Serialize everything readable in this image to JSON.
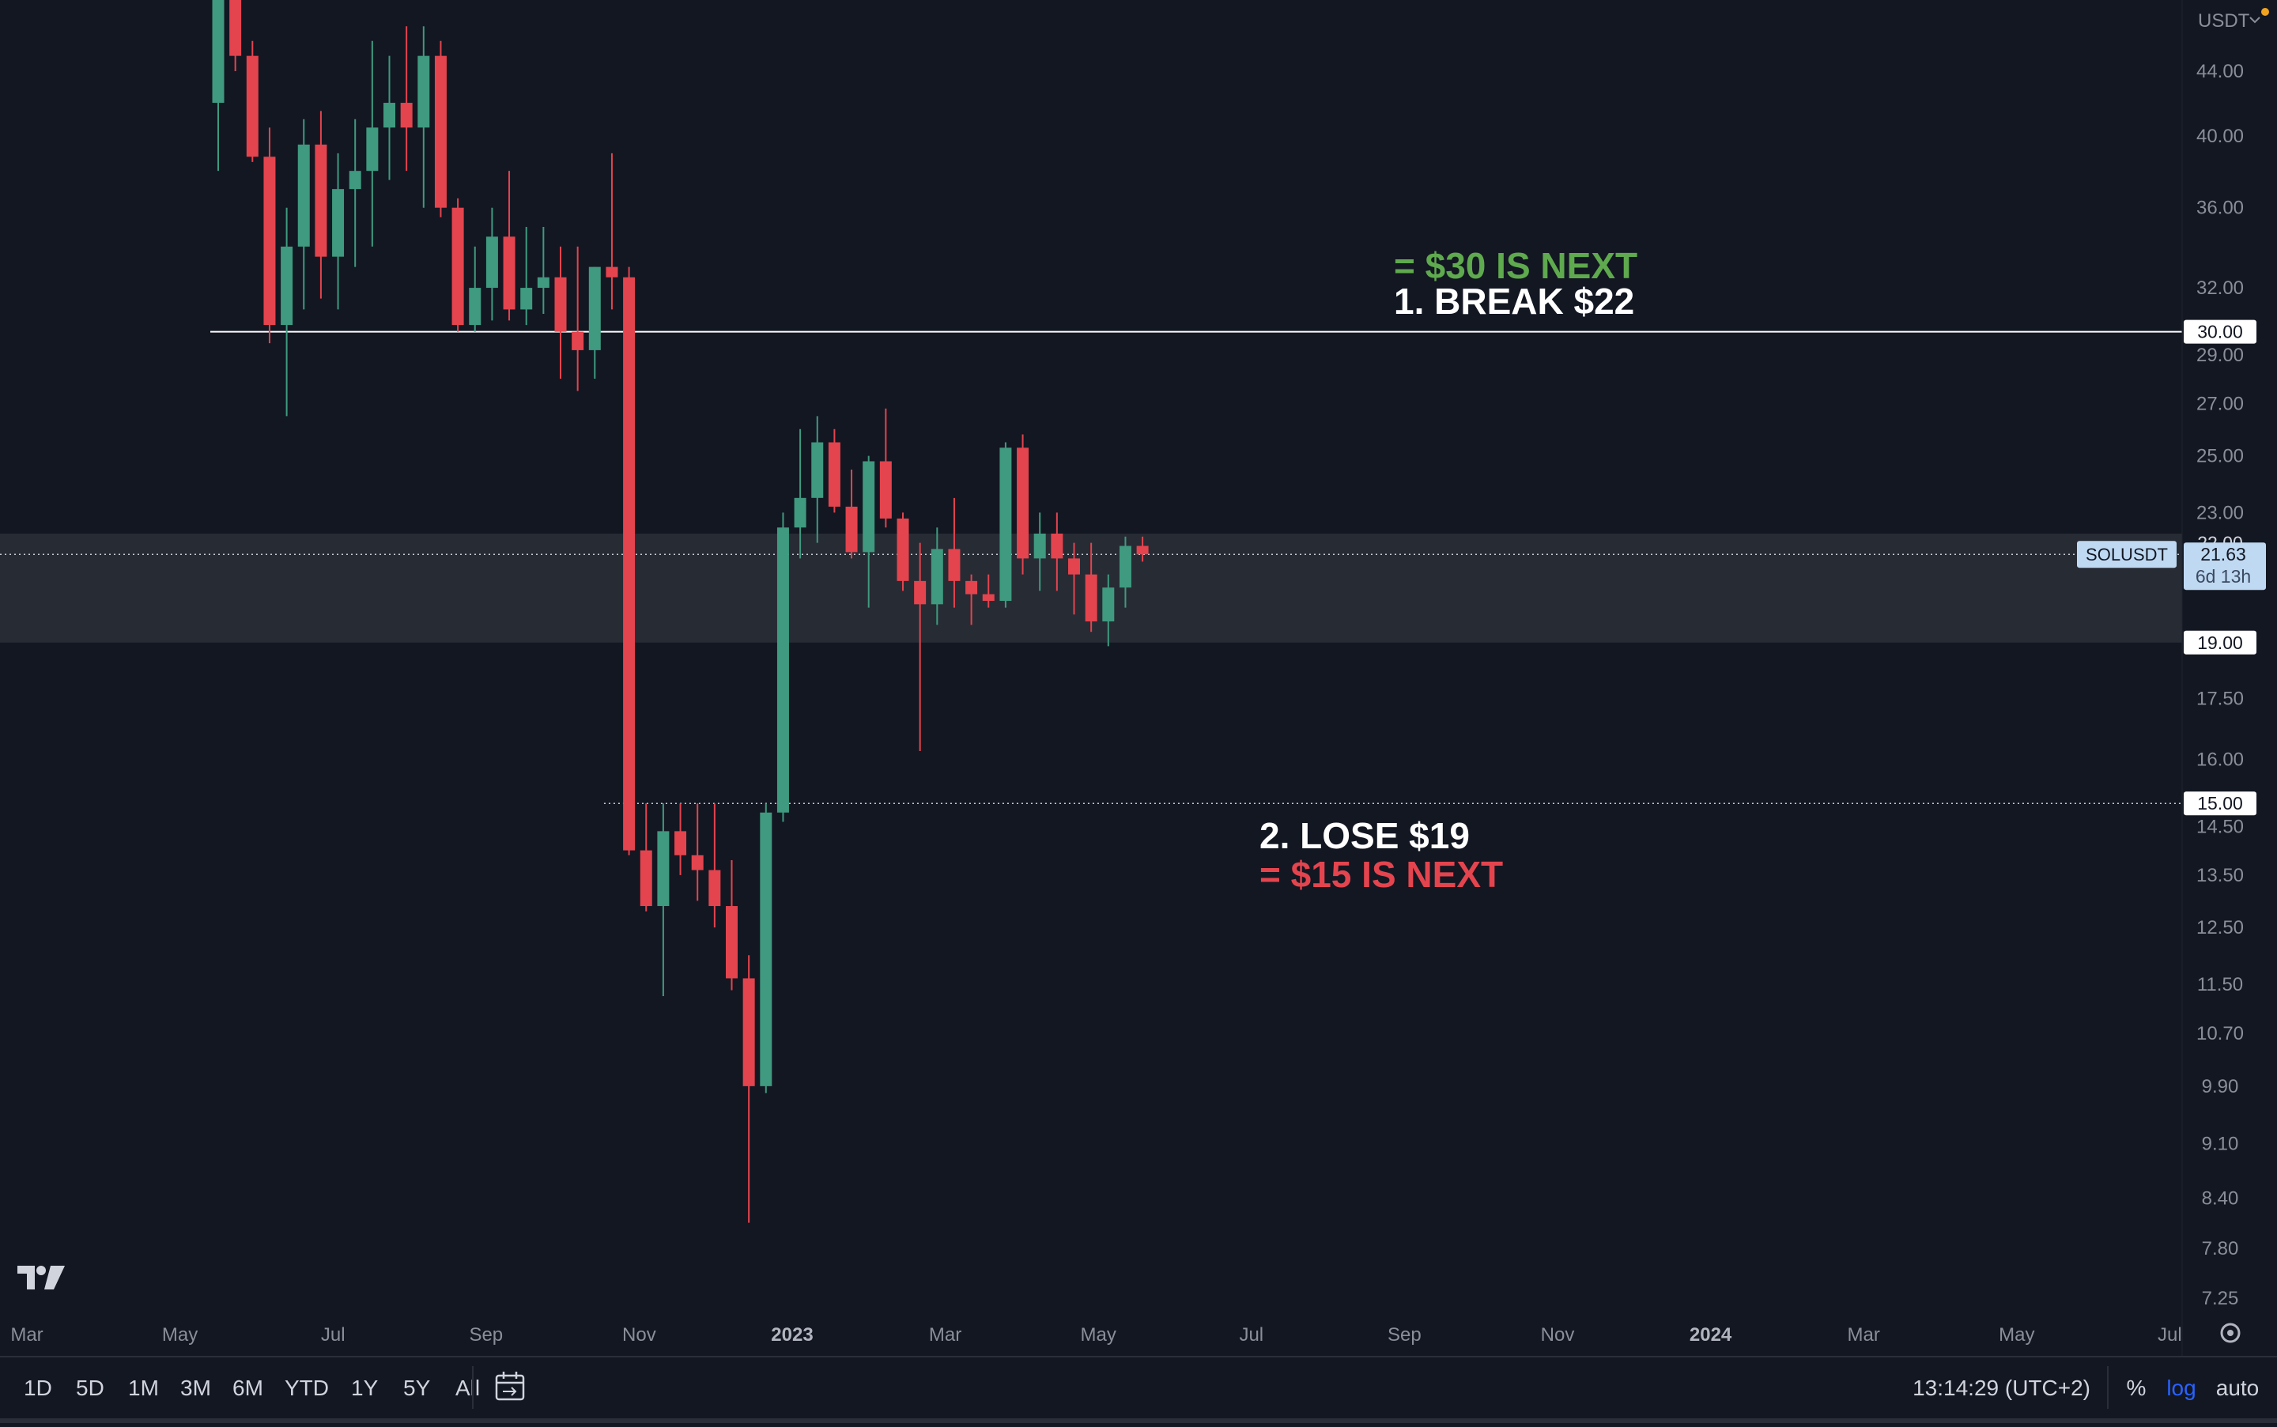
{
  "colors": {
    "background": "#131722",
    "up": "#3f9a7f",
    "down": "#e4444e",
    "axis_text": "#8a8e98",
    "annotation_green": "#5fa94e",
    "annotation_red": "#e4444e",
    "annotation_white": "#ffffff",
    "zone": "#2c2f37",
    "accent_blue": "#2962ff",
    "badge_bg": "#bfd9f2"
  },
  "chart_data": {
    "type": "candlestick",
    "title": "",
    "symbol": "SOLUSDT",
    "currency": "USDT",
    "interval": "1W",
    "y_scale": "log",
    "ylim": [
      7.0,
      48.0
    ],
    "y_ticks": [
      "44.00",
      "40.00",
      "36.00",
      "32.00",
      "29.00",
      "27.00",
      "25.00",
      "23.00",
      "17.50",
      "16.00",
      "14.50",
      "13.50",
      "12.50",
      "11.50",
      "10.70",
      "9.90",
      "9.10",
      "8.40",
      "7.80",
      "7.25"
    ],
    "x_ticks": [
      "Mar",
      "May",
      "Jul",
      "Sep",
      "Nov",
      "2023",
      "Mar",
      "May",
      "Jul",
      "Sep",
      "Nov",
      "2024",
      "Mar",
      "May",
      "Jul"
    ],
    "last_price": "21.63",
    "countdown": "6d 13h",
    "hidden_label": "22.00",
    "levels": [
      {
        "price": 30.0,
        "label": "30.00",
        "style": "solid",
        "start_week": 0
      },
      {
        "price": 15.0,
        "label": "15.00",
        "style": "dotted",
        "start_week": 23
      }
    ],
    "zone": {
      "low": 19.0,
      "high": 22.3,
      "label": "19.00"
    },
    "candles": [
      {
        "o": 42.0,
        "h": 52.0,
        "l": 38.0,
        "c": 50.0
      },
      {
        "o": 50.0,
        "h": 53.0,
        "l": 44.0,
        "c": 45.0
      },
      {
        "o": 45.0,
        "h": 46.0,
        "l": 38.5,
        "c": 38.8
      },
      {
        "o": 38.8,
        "h": 40.5,
        "l": 29.5,
        "c": 30.3
      },
      {
        "o": 30.3,
        "h": 36.0,
        "l": 26.5,
        "c": 34.0
      },
      {
        "o": 34.0,
        "h": 41.0,
        "l": 31.0,
        "c": 39.5
      },
      {
        "o": 39.5,
        "h": 41.5,
        "l": 31.5,
        "c": 33.5
      },
      {
        "o": 33.5,
        "h": 39.0,
        "l": 31.0,
        "c": 37.0
      },
      {
        "o": 37.0,
        "h": 41.0,
        "l": 33.0,
        "c": 38.0
      },
      {
        "o": 38.0,
        "h": 46.0,
        "l": 34.0,
        "c": 40.5
      },
      {
        "o": 40.5,
        "h": 45.0,
        "l": 37.5,
        "c": 42.0
      },
      {
        "o": 42.0,
        "h": 47.0,
        "l": 38.0,
        "c": 40.5
      },
      {
        "o": 40.5,
        "h": 47.0,
        "l": 36.0,
        "c": 45.0
      },
      {
        "o": 45.0,
        "h": 46.0,
        "l": 35.5,
        "c": 36.0
      },
      {
        "o": 36.0,
        "h": 36.5,
        "l": 30.0,
        "c": 30.3
      },
      {
        "o": 30.3,
        "h": 34.0,
        "l": 30.0,
        "c": 32.0
      },
      {
        "o": 32.0,
        "h": 36.0,
        "l": 30.5,
        "c": 34.5
      },
      {
        "o": 34.5,
        "h": 38.0,
        "l": 30.5,
        "c": 31.0
      },
      {
        "o": 31.0,
        "h": 35.0,
        "l": 30.3,
        "c": 32.0
      },
      {
        "o": 32.0,
        "h": 35.0,
        "l": 30.8,
        "c": 32.5
      },
      {
        "o": 32.5,
        "h": 34.0,
        "l": 28.0,
        "c": 30.0
      },
      {
        "o": 30.0,
        "h": 34.0,
        "l": 27.5,
        "c": 29.2
      },
      {
        "o": 29.2,
        "h": 33.0,
        "l": 28.0,
        "c": 33.0
      },
      {
        "o": 33.0,
        "h": 39.0,
        "l": 31.0,
        "c": 32.5
      },
      {
        "o": 32.5,
        "h": 33.0,
        "l": 13.9,
        "c": 14.0
      },
      {
        "o": 14.0,
        "h": 15.0,
        "l": 12.8,
        "c": 12.9
      },
      {
        "o": 12.9,
        "h": 15.0,
        "l": 11.3,
        "c": 14.4
      },
      {
        "o": 14.4,
        "h": 15.0,
        "l": 13.5,
        "c": 13.9
      },
      {
        "o": 13.9,
        "h": 15.0,
        "l": 13.0,
        "c": 13.6
      },
      {
        "o": 13.6,
        "h": 15.0,
        "l": 12.5,
        "c": 12.9
      },
      {
        "o": 12.9,
        "h": 13.8,
        "l": 11.4,
        "c": 11.6
      },
      {
        "o": 11.6,
        "h": 12.0,
        "l": 8.1,
        "c": 9.9
      },
      {
        "o": 9.9,
        "h": 15.0,
        "l": 9.8,
        "c": 14.8
      },
      {
        "o": 14.8,
        "h": 23.0,
        "l": 14.6,
        "c": 22.5
      },
      {
        "o": 22.5,
        "h": 26.0,
        "l": 21.5,
        "c": 23.5
      },
      {
        "o": 23.5,
        "h": 26.5,
        "l": 22.0,
        "c": 25.5
      },
      {
        "o": 25.5,
        "h": 26.0,
        "l": 23.0,
        "c": 23.2
      },
      {
        "o": 23.2,
        "h": 24.5,
        "l": 21.5,
        "c": 21.7
      },
      {
        "o": 21.7,
        "h": 25.0,
        "l": 20.0,
        "c": 24.8
      },
      {
        "o": 24.8,
        "h": 26.8,
        "l": 22.5,
        "c": 22.8
      },
      {
        "o": 22.8,
        "h": 23.0,
        "l": 20.5,
        "c": 20.8
      },
      {
        "o": 20.8,
        "h": 22.0,
        "l": 16.2,
        "c": 20.1
      },
      {
        "o": 20.1,
        "h": 22.5,
        "l": 19.5,
        "c": 21.8
      },
      {
        "o": 21.8,
        "h": 23.5,
        "l": 20.0,
        "c": 20.8
      },
      {
        "o": 20.8,
        "h": 21.0,
        "l": 19.5,
        "c": 20.4
      },
      {
        "o": 20.4,
        "h": 21.0,
        "l": 20.0,
        "c": 20.2
      },
      {
        "o": 20.2,
        "h": 25.5,
        "l": 20.0,
        "c": 25.3
      },
      {
        "o": 25.3,
        "h": 25.8,
        "l": 21.0,
        "c": 21.5
      },
      {
        "o": 21.5,
        "h": 23.0,
        "l": 20.5,
        "c": 22.3
      },
      {
        "o": 22.3,
        "h": 23.0,
        "l": 20.5,
        "c": 21.5
      },
      {
        "o": 21.5,
        "h": 22.0,
        "l": 19.8,
        "c": 21.0
      },
      {
        "o": 21.0,
        "h": 22.0,
        "l": 19.3,
        "c": 19.6
      },
      {
        "o": 19.6,
        "h": 21.0,
        "l": 18.9,
        "c": 20.6
      },
      {
        "o": 20.6,
        "h": 22.2,
        "l": 20.0,
        "c": 21.9
      },
      {
        "o": 21.9,
        "h": 22.2,
        "l": 21.4,
        "c": 21.63
      }
    ]
  },
  "axis": {
    "currency": "USDT",
    "settings_icon": "gear-icon"
  },
  "labels": {
    "level_30": "30.00",
    "level_19": "19.00",
    "level_15": "15.00",
    "hidden_22": "22.00",
    "symbol_badge": "SOLUSDT",
    "last_price": "21.63",
    "countdown": "6d 13h"
  },
  "annotations": {
    "green_line": "= $30 IS NEXT",
    "break_line": "1. BREAK $22",
    "lose_line": "2. LOSE $19",
    "red_line": "= $15 IS NEXT"
  },
  "logo": {
    "text": "TV",
    "icon": "tradingview-logo-icon"
  },
  "toolbar": {
    "ranges": [
      "1D",
      "5D",
      "1M",
      "3M",
      "6M",
      "YTD",
      "1Y",
      "5Y",
      "All"
    ],
    "goto_icon": "calendar-icon",
    "time": "13:14:29 (UTC+2)",
    "percent": "%",
    "log": "log",
    "auto": "auto"
  }
}
